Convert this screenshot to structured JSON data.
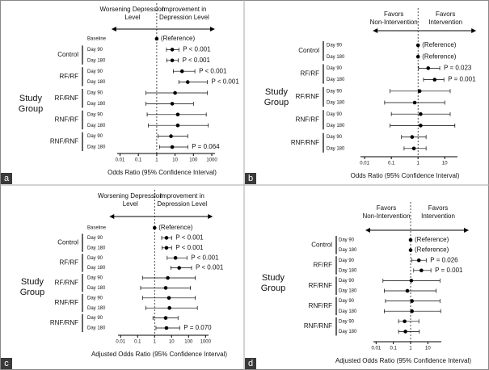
{
  "chart_data": [
    {
      "type": "forest",
      "panel_label": "a",
      "header_left": "Worsening Depression Level",
      "header_right": "Improvement in Depression Level",
      "xlabel": "Odds Ratio (95% Confidence Interval)",
      "group_title": "Study Group",
      "log_x": true,
      "xlim": [
        0.007,
        1500
      ],
      "xticks": [
        0.01,
        0.1,
        1,
        10,
        100,
        1000
      ],
      "baseline": {
        "label": "Baseline",
        "value": 1,
        "annotation": "(Reference)"
      },
      "groups": [
        {
          "name": "Control",
          "rows": [
            {
              "label": "Day 90",
              "value": 7,
              "lower": 3.4,
              "upper": 16,
              "annotation": "P < 0.001"
            },
            {
              "label": "Day 180",
              "value": 7,
              "lower": 3.5,
              "upper": 15,
              "annotation": "P < 0.001"
            }
          ]
        },
        {
          "name": "RF/RF",
          "rows": [
            {
              "label": "Day 90",
              "value": 24,
              "lower": 8,
              "upper": 120,
              "annotation": "P < 0.001"
            },
            {
              "label": "Day 180",
              "value": 49,
              "lower": 16,
              "upper": 570,
              "annotation": "P < 0.001"
            }
          ]
        },
        {
          "name": "RF/RNF",
          "rows": [
            {
              "label": "Day 90",
              "value": 10,
              "lower": 0.26,
              "upper": 570
            },
            {
              "label": "Day 180",
              "value": 7,
              "lower": 0.26,
              "upper": 100
            }
          ]
        },
        {
          "name": "RNF/RF",
          "rows": [
            {
              "label": "Day 90",
              "value": 14,
              "lower": 0.3,
              "upper": 500
            },
            {
              "label": "Day 180",
              "value": 14,
              "lower": 0.35,
              "upper": 650
            }
          ]
        },
        {
          "name": "RNF/RNF",
          "rows": [
            {
              "label": "Day 90",
              "value": 6,
              "lower": 1.2,
              "upper": 49
            },
            {
              "label": "Day 180",
              "value": 7,
              "lower": 1.4,
              "upper": 49,
              "annotation": "P = 0.064"
            }
          ]
        }
      ]
    },
    {
      "type": "forest",
      "panel_label": "b",
      "header_left": "Favors Non-Intervention",
      "header_right": "Favors Intervention",
      "xlabel": "Odds Ratio (95% Confidence Interval)",
      "group_title": "Study Group",
      "log_x": true,
      "xlim": [
        0.007,
        30
      ],
      "xticks": [
        0.01,
        0.1,
        1,
        10
      ],
      "groups": [
        {
          "name": "Control",
          "rows": [
            {
              "label": "Day 90",
              "value": 1,
              "annotation": "(Reference)"
            },
            {
              "label": "Day 180",
              "value": 1,
              "annotation": "(Reference)"
            }
          ]
        },
        {
          "name": "RF/RF",
          "rows": [
            {
              "label": "Day 90",
              "value": 2.4,
              "lower": 1.05,
              "upper": 6.5,
              "annotation": "P = 0.023"
            },
            {
              "label": "Day 180",
              "value": 4.2,
              "lower": 1.6,
              "upper": 9.3,
              "annotation": "P = 0.001"
            }
          ]
        },
        {
          "name": "RF/RNF",
          "rows": [
            {
              "label": "Day 90",
              "value": 1.15,
              "lower": 0.09,
              "upper": 16
            },
            {
              "label": "Day 180",
              "value": 0.75,
              "lower": 0.056,
              "upper": 10
            }
          ]
        },
        {
          "name": "RNF/RF",
          "rows": [
            {
              "label": "Day 90",
              "value": 1.25,
              "lower": 0.1,
              "upper": 16
            },
            {
              "label": "Day 180",
              "value": 1.25,
              "lower": 0.09,
              "upper": 24
            }
          ]
        },
        {
          "name": "RNF/RNF",
          "rows": [
            {
              "label": "Day 90",
              "value": 0.6,
              "lower": 0.24,
              "upper": 2
            },
            {
              "label": "Day 180",
              "value": 0.7,
              "lower": 0.3,
              "upper": 2
            }
          ]
        }
      ]
    },
    {
      "type": "forest",
      "panel_label": "c",
      "header_left": "Worsening Depression Level",
      "header_right": "Improvement in Depression Level",
      "xlabel": "Adjusted Odds Ratio (95% Confidence Interval)",
      "group_title": "Study Group",
      "log_x": true,
      "xlim": [
        0.007,
        1500
      ],
      "xticks": [
        0.01,
        0.1,
        1,
        10,
        100,
        1000
      ],
      "baseline": {
        "label": "Baseline",
        "value": 1,
        "annotation": "(Reference)"
      },
      "groups": [
        {
          "name": "Control",
          "rows": [
            {
              "label": "Day 90",
              "value": 5,
              "lower": 2.6,
              "upper": 10,
              "annotation": "P < 0.001"
            },
            {
              "label": "Day 180",
              "value": 5,
              "lower": 2.7,
              "upper": 10,
              "annotation": "P < 0.001"
            }
          ]
        },
        {
          "name": "RF/RF",
          "rows": [
            {
              "label": "Day 90",
              "value": 17,
              "lower": 5.5,
              "upper": 80,
              "annotation": "P < 0.001"
            },
            {
              "label": "Day 180",
              "value": 28,
              "lower": 9,
              "upper": 150,
              "annotation": "P < 0.001"
            }
          ]
        },
        {
          "name": "RF/RNF",
          "rows": [
            {
              "label": "Day 90",
              "value": 6,
              "lower": 0.2,
              "upper": 250
            },
            {
              "label": "Day 180",
              "value": 4.5,
              "lower": 0.15,
              "upper": 130
            }
          ]
        },
        {
          "name": "RNF/RF",
          "rows": [
            {
              "label": "Day 90",
              "value": 7,
              "lower": 0.2,
              "upper": 250
            },
            {
              "label": "Day 180",
              "value": 7.5,
              "lower": 0.3,
              "upper": 330
            }
          ]
        },
        {
          "name": "RNF/RNF",
          "rows": [
            {
              "label": "Day 90",
              "value": 4.5,
              "lower": 0.8,
              "upper": 24
            },
            {
              "label": "Day 180",
              "value": 5,
              "lower": 1.2,
              "upper": 30,
              "annotation": "P = 0.070"
            }
          ]
        }
      ]
    },
    {
      "type": "forest",
      "panel_label": "d",
      "header_left": "Favors Non-Intervention",
      "header_right": "Favors Intervention",
      "xlabel": "Adjusted Odds Ratio (95% Confidence Interval)",
      "group_title": "Study Group",
      "log_x": true,
      "xlim": [
        0.007,
        60
      ],
      "xticks": [
        0.01,
        0.1,
        1,
        10
      ],
      "groups": [
        {
          "name": "Control",
          "rows": [
            {
              "label": "Day 90",
              "value": 1,
              "annotation": "(Reference)"
            },
            {
              "label": "Day 180",
              "value": 1,
              "annotation": "(Reference)"
            }
          ]
        },
        {
          "name": "RF/RF",
          "rows": [
            {
              "label": "Day 90",
              "value": 3,
              "lower": 1.2,
              "upper": 8,
              "annotation": "P = 0.026"
            },
            {
              "label": "Day 180",
              "value": 4.2,
              "lower": 1.5,
              "upper": 15,
              "annotation": "P = 0.001"
            }
          ]
        },
        {
          "name": "RF/RNF",
          "rows": [
            {
              "label": "Day 90",
              "value": 1.1,
              "lower": 0.025,
              "upper": 50
            },
            {
              "label": "Day 180",
              "value": 0.65,
              "lower": 0.03,
              "upper": 30
            }
          ]
        },
        {
          "name": "RNF/RF",
          "rows": [
            {
              "label": "Day 90",
              "value": 1.2,
              "lower": 0.035,
              "upper": 50
            },
            {
              "label": "Day 180",
              "value": 1.2,
              "lower": 0.03,
              "upper": 55
            }
          ]
        },
        {
          "name": "RNF/RNF",
          "rows": [
            {
              "label": "Day 90",
              "value": 0.45,
              "lower": 0.2,
              "upper": 3
            },
            {
              "label": "Day 180",
              "value": 0.5,
              "lower": 0.2,
              "upper": 3.2
            }
          ]
        }
      ]
    }
  ]
}
